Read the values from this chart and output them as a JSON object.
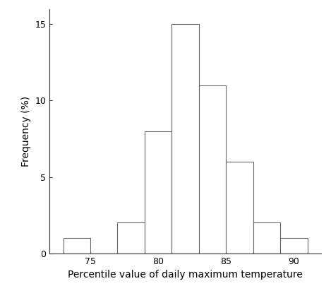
{
  "bin_edges": [
    73,
    75,
    77,
    79,
    81,
    83,
    85,
    87,
    89,
    91
  ],
  "frequencies": [
    1,
    0,
    2,
    8,
    15,
    11,
    6,
    2,
    1
  ],
  "xlabel": "Percentile value of daily maximum temperature",
  "ylabel": "Frequency (%)",
  "xlim": [
    72,
    92
  ],
  "ylim": [
    0,
    16
  ],
  "xticks": [
    75,
    80,
    85,
    90
  ],
  "yticks": [
    0,
    5,
    10,
    15
  ],
  "bar_facecolor": "white",
  "bar_edgecolor": "#666666",
  "background_color": "white",
  "figsize": [
    4.69,
    4.22
  ],
  "dpi": 100,
  "tick_labelsize": 9,
  "axis_labelsize": 10
}
